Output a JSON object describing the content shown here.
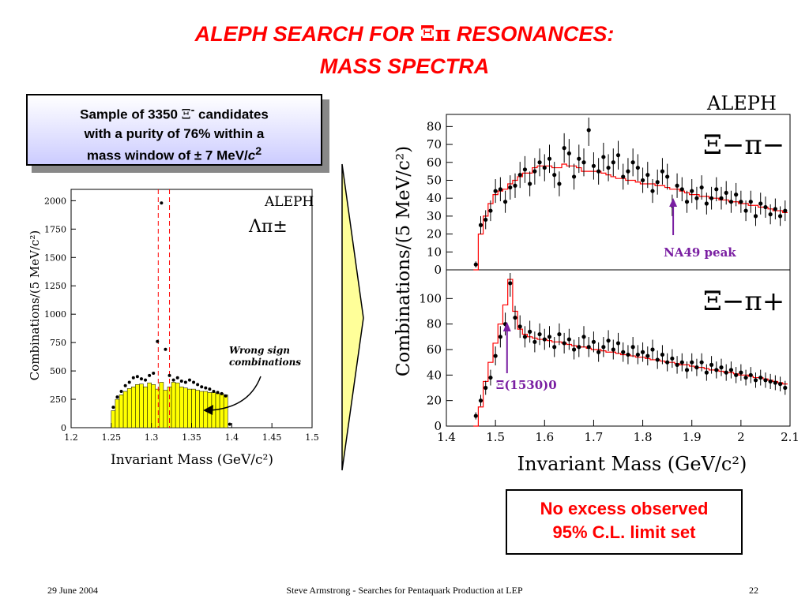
{
  "title": {
    "line1_pre": "ALEPH SEARCH FOR ",
    "line1_greek": "Ξπ",
    "line1_post": " RESONANCES:",
    "line2": "MASS SPECTRA"
  },
  "sample_box": {
    "line1_pre": "Sample of 3350 ",
    "line1_greek": "Ξ",
    "line1_sup": "-",
    "line1_post": " candidates",
    "line2": "with a purity of 76% within a",
    "line3_pre": "mass window of ± 7 MeV/",
    "line3_c": "c",
    "line3_sup": "2"
  },
  "result_box": {
    "line1": "No excess observed",
    "line2": "95% C.L. limit set"
  },
  "footer": {
    "date": "29 June 2004",
    "center": "Steve Armstrong - Searches for Pentaquark Production at LEP",
    "page": "22"
  },
  "colors": {
    "title": "#ff0000",
    "histogram_fill": "#ffff00",
    "arrow_fill": "#ffff99",
    "red_histogram": "#ff0000",
    "annotation_purple": "#7a1fa2"
  },
  "chart_data": [
    {
      "type": "bar",
      "label_experiment": "ALEPH",
      "label_channel": "Λπ±",
      "ylabel": "Combinations/(5 MeV/c²)",
      "xlabel": "Invariant Mass (GeV/c²)",
      "xlim": [
        1.2,
        1.5
      ],
      "ylim": [
        0,
        2100
      ],
      "x_ticks": [
        "1.2",
        "1.25",
        "1.3",
        "1.35",
        "1.4",
        "1.45",
        "1.5"
      ],
      "y_ticks": [
        "0",
        "250",
        "500",
        "750",
        "1000",
        "1250",
        "1500",
        "1750",
        "2000"
      ],
      "annotation": "Wrong sign combinations",
      "mass_window": [
        1.3085,
        1.3225
      ],
      "wrong_sign_x": [
        1.2525,
        1.2575,
        1.2625,
        1.2675,
        1.2725,
        1.2775,
        1.2825,
        1.2875,
        1.2925,
        1.2975,
        1.3025,
        1.3075,
        1.3125,
        1.3175,
        1.3225,
        1.3275,
        1.3325,
        1.3375,
        1.3425,
        1.3475,
        1.3525,
        1.3575,
        1.3625,
        1.3675,
        1.3725,
        1.3775,
        1.3825,
        1.3875,
        1.3925,
        1.3975
      ],
      "wrong_sign_values": [
        150,
        250,
        290,
        320,
        345,
        360,
        380,
        385,
        360,
        395,
        380,
        340,
        400,
        330,
        360,
        400,
        395,
        360,
        350,
        340,
        340,
        330,
        320,
        320,
        310,
        310,
        300,
        300,
        290,
        0
      ],
      "points_x": [
        1.2525,
        1.2575,
        1.2625,
        1.2675,
        1.2725,
        1.2775,
        1.2825,
        1.2875,
        1.2925,
        1.2975,
        1.3025,
        1.3075,
        1.3125,
        1.3175,
        1.3225,
        1.3275,
        1.3325,
        1.3375,
        1.3425,
        1.3475,
        1.3525,
        1.3575,
        1.3625,
        1.3675,
        1.3725,
        1.3775,
        1.3825,
        1.3875,
        1.3925,
        1.3975
      ],
      "points_y": [
        180,
        270,
        320,
        370,
        400,
        440,
        450,
        430,
        420,
        460,
        480,
        760,
        1980,
        690,
        460,
        420,
        440,
        410,
        400,
        420,
        400,
        380,
        360,
        350,
        340,
        320,
        310,
        300,
        280,
        30
      ]
    },
    {
      "type": "scatter",
      "panel": "top",
      "label_experiment": "ALEPH",
      "label_channel": "Ξ−π−",
      "annotation": "NA49 peak",
      "annotation_x": 1.862,
      "xlim": [
        1.4,
        2.1
      ],
      "ylim": [
        0,
        85
      ],
      "y_ticks": [
        "0",
        "10",
        "20",
        "30",
        "40",
        "50",
        "60",
        "70",
        "80"
      ],
      "points_x": [
        1.46,
        1.47,
        1.48,
        1.49,
        1.5,
        1.51,
        1.52,
        1.53,
        1.54,
        1.55,
        1.56,
        1.57,
        1.58,
        1.59,
        1.6,
        1.61,
        1.62,
        1.63,
        1.64,
        1.65,
        1.66,
        1.67,
        1.68,
        1.69,
        1.7,
        1.71,
        1.72,
        1.73,
        1.74,
        1.75,
        1.76,
        1.77,
        1.78,
        1.79,
        1.8,
        1.81,
        1.82,
        1.83,
        1.84,
        1.85,
        1.86,
        1.87,
        1.88,
        1.89,
        1.9,
        1.91,
        1.92,
        1.93,
        1.94,
        1.95,
        1.96,
        1.97,
        1.98,
        1.99,
        2.0,
        2.01,
        2.02,
        2.03,
        2.04,
        2.05,
        2.06,
        2.07,
        2.08,
        2.09
      ],
      "points_y": [
        3,
        25,
        28,
        33,
        44,
        45,
        38,
        46,
        47,
        53,
        56,
        48,
        55,
        60,
        57,
        62,
        53,
        48,
        68,
        65,
        52,
        62,
        60,
        78,
        58,
        55,
        63,
        57,
        60,
        64,
        52,
        55,
        60,
        57,
        50,
        53,
        44,
        49,
        55,
        52,
        36,
        47,
        45,
        38,
        44,
        40,
        46,
        37,
        40,
        45,
        40,
        43,
        38,
        42,
        38,
        33,
        38,
        30,
        37,
        35,
        31,
        34,
        30,
        33
      ],
      "red_histogram_y": [
        0,
        20,
        30,
        37,
        42,
        44,
        45,
        48,
        50,
        52,
        54,
        54,
        57,
        58,
        58,
        58,
        57,
        57,
        59,
        58,
        58,
        57,
        55,
        55,
        55,
        55,
        54,
        53,
        52,
        51,
        51,
        50,
        50,
        49,
        48,
        48,
        48,
        47,
        47,
        46,
        45,
        45,
        44,
        43,
        42,
        42,
        41,
        41,
        40,
        40,
        39,
        39,
        38,
        38,
        37,
        37,
        36,
        36,
        35,
        35,
        34,
        33,
        33,
        32
      ]
    },
    {
      "type": "scatter",
      "panel": "bottom",
      "label_channel": "Ξ−π+",
      "annotation": "Ξ(1530)0",
      "annotation_x": 1.53,
      "ylabel": "Combinations/(5 MeV/c²)",
      "xlabel": "Invariant Mass (GeV/c²)",
      "xlim": [
        1.4,
        2.1
      ],
      "ylim": [
        0,
        120
      ],
      "x_ticks": [
        "1.4",
        "1.5",
        "1.6",
        "1.7",
        "1.8",
        "1.9",
        "2",
        "2.1"
      ],
      "y_ticks": [
        "0",
        "20",
        "40",
        "60",
        "80",
        "100"
      ],
      "points_x": [
        1.46,
        1.47,
        1.48,
        1.49,
        1.5,
        1.51,
        1.52,
        1.53,
        1.54,
        1.55,
        1.56,
        1.57,
        1.58,
        1.59,
        1.6,
        1.61,
        1.62,
        1.63,
        1.64,
        1.65,
        1.66,
        1.67,
        1.68,
        1.69,
        1.7,
        1.71,
        1.72,
        1.73,
        1.74,
        1.75,
        1.76,
        1.77,
        1.78,
        1.79,
        1.8,
        1.81,
        1.82,
        1.83,
        1.84,
        1.85,
        1.86,
        1.87,
        1.88,
        1.89,
        1.9,
        1.91,
        1.92,
        1.93,
        1.94,
        1.95,
        1.96,
        1.97,
        1.98,
        1.99,
        2.0,
        2.01,
        2.02,
        2.03,
        2.04,
        2.05,
        2.06,
        2.07,
        2.08,
        2.09
      ],
      "points_y": [
        8,
        20,
        30,
        38,
        55,
        70,
        80,
        112,
        85,
        78,
        70,
        74,
        66,
        72,
        68,
        70,
        62,
        72,
        65,
        68,
        60,
        62,
        70,
        62,
        66,
        58,
        62,
        67,
        60,
        65,
        58,
        56,
        62,
        56,
        58,
        55,
        60,
        52,
        56,
        50,
        53,
        48,
        50,
        44,
        50,
        46,
        50,
        42,
        48,
        44,
        46,
        42,
        44,
        40,
        42,
        38,
        40,
        36,
        38,
        36,
        35,
        34,
        33,
        30
      ],
      "red_histogram_y": [
        0,
        15,
        35,
        50,
        65,
        80,
        95,
        115,
        90,
        76,
        72,
        70,
        69,
        68,
        68,
        67,
        66,
        66,
        65,
        64,
        63,
        62,
        62,
        61,
        60,
        60,
        59,
        58,
        58,
        57,
        56,
        56,
        55,
        54,
        54,
        53,
        52,
        52,
        51,
        50,
        50,
        49,
        48,
        48,
        47,
        46,
        46,
        45,
        44,
        44,
        43,
        42,
        42,
        41,
        40,
        40,
        39,
        38,
        38,
        37,
        36,
        35,
        34,
        33
      ]
    }
  ]
}
